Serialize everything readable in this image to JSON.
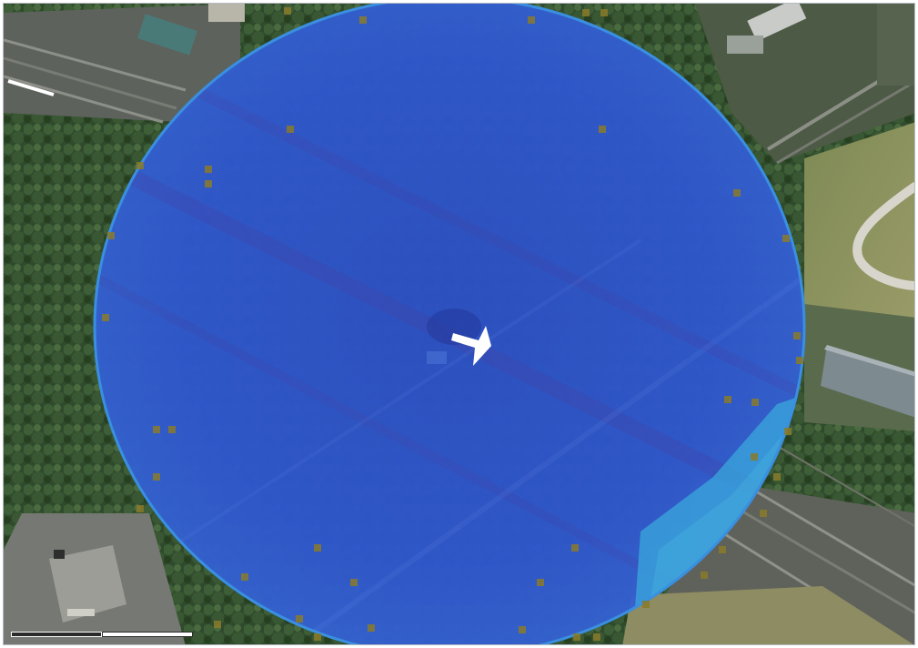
{
  "map": {
    "view": "satellite",
    "overlay": {
      "shape": "circle",
      "fill_color": "#2f55c8",
      "edge_color": "#3a8fe0",
      "secondary_fill_color": "#3aa8dc"
    },
    "marker": {
      "icon": "direction-arrow-icon",
      "color": "#ffffff",
      "heading": "east"
    },
    "sample_points": {
      "color": "#8a7a2a"
    },
    "scale_bar": {
      "segments": 2
    }
  }
}
